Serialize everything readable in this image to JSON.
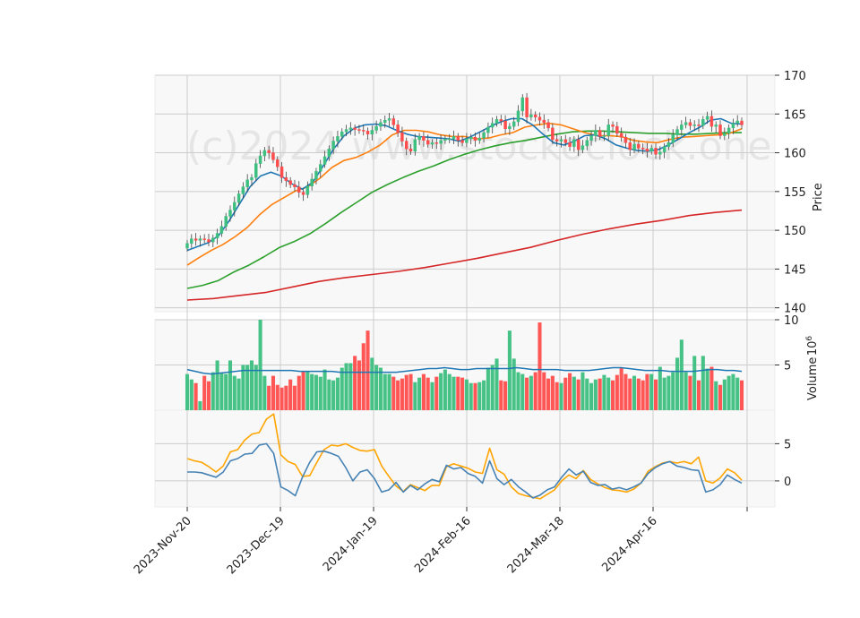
{
  "watermark": "(c)2024 www.stockoclock.one",
  "chart_data": {
    "type": "candlestick",
    "x_tick_labels": [
      "2023-Nov-20",
      "2023-Dec-19",
      "2024-Jan-19",
      "2024-Feb-16",
      "2024-Mar-18",
      "2024-Apr-16"
    ],
    "price_axis": {
      "label": "Price",
      "ylim": [
        139.5,
        170
      ],
      "ticks": [
        140,
        145,
        150,
        155,
        160,
        165,
        170
      ]
    },
    "volume_axis": {
      "label": "Volume",
      "exponent_label": "10^6",
      "ylim": [
        0,
        10
      ],
      "ticks": [
        5,
        10
      ]
    },
    "indicator_axis": {
      "ylim": [
        -3.5,
        9.5
      ],
      "ticks": [
        0,
        5
      ]
    },
    "colors": {
      "up": "#3dbf80",
      "down": "#ff4d4d",
      "ma_short": "#1f77b4",
      "ma_mid": "#ff7f0e",
      "ma_long": "#2ca02c",
      "ma_200": "#d62728",
      "volume_ma": "#1f77b4",
      "macd": "#4682b4",
      "signal": "#ffa500",
      "panel_bg": "#f8f8f8",
      "grid": "#cccccc"
    },
    "candle_closes": [
      148.3,
      148.9,
      148.7,
      148.9,
      148.8,
      148.5,
      149.0,
      149.6,
      150.5,
      151.8,
      152.6,
      153.6,
      154.7,
      155.6,
      156.5,
      156.8,
      158.6,
      159.6,
      160.3,
      160.0,
      159.1,
      158.2,
      156.8,
      156.4,
      155.9,
      155.6,
      154.9,
      154.6,
      155.7,
      156.6,
      157.6,
      158.5,
      159.5,
      160.5,
      161.5,
      162.1,
      162.7,
      163.0,
      163.2,
      163.0,
      162.9,
      162.8,
      162.4,
      162.9,
      163.4,
      163.9,
      164.2,
      164.4,
      163.6,
      162.6,
      161.5,
      160.5,
      160.2,
      161.7,
      162.1,
      161.6,
      161.1,
      161.3,
      161.2,
      161.6,
      161.8,
      161.8,
      162.1,
      161.6,
      161.3,
      161.8,
      162.0,
      161.6,
      161.9,
      162.6,
      163.3,
      163.8,
      164.3,
      164.1,
      163.1,
      163.4,
      164.0,
      165.4,
      167.1,
      164.6,
      164.9,
      164.6,
      164.2,
      163.9,
      163.2,
      161.7,
      161.5,
      161.7,
      161.3,
      160.8,
      161.7,
      160.4,
      160.9,
      161.6,
      162.2,
      162.9,
      162.1,
      162.2,
      163.6,
      163.4,
      162.5,
      162.0,
      161.3,
      160.4,
      161.1,
      160.6,
      160.5,
      160.2,
      160.6,
      159.8,
      160.1,
      160.8,
      161.3,
      162.3,
      163.0,
      163.6,
      163.9,
      163.5,
      163.6,
      163.5,
      164.3,
      164.7,
      163.4,
      163.6,
      162.2,
      162.5,
      163.2,
      163.8,
      164.1,
      163.6
    ],
    "volume_millions": [
      4.0,
      3.4,
      3.0,
      1.0,
      3.8,
      3.2,
      4.2,
      5.5,
      4.1,
      4.0,
      5.5,
      3.8,
      3.5,
      5.0,
      5.0,
      5.5,
      5.0,
      10.0,
      3.8,
      2.7,
      3.8,
      2.8,
      2.5,
      2.7,
      3.4,
      2.7,
      3.8,
      4.3,
      4.3,
      4.0,
      3.9,
      3.7,
      4.5,
      3.4,
      3.3,
      3.6,
      4.7,
      5.2,
      5.2,
      6.0,
      5.5,
      7.4,
      8.8,
      5.8,
      5.0,
      4.7,
      4.0,
      4.0,
      3.7,
      3.3,
      3.5,
      3.9,
      4.0,
      3.1,
      3.6,
      4.0,
      3.6,
      3.1,
      3.7,
      4.1,
      4.5,
      4.0,
      3.7,
      3.7,
      3.6,
      3.4,
      3.0,
      3.0,
      3.1,
      3.3,
      4.7,
      5.0,
      5.7,
      3.3,
      3.2,
      8.8,
      5.7,
      4.2,
      4.0,
      3.6,
      3.8,
      4.2,
      9.7,
      4.2,
      3.5,
      3.8,
      3.1,
      3.0,
      3.6,
      4.1,
      3.7,
      3.4,
      4.2,
      3.5,
      3.0,
      3.4,
      3.5,
      3.9,
      3.6,
      3.3,
      3.9,
      4.7,
      4.0,
      3.5,
      3.8,
      3.5,
      3.3,
      4.0,
      4.0,
      3.4,
      4.8,
      3.6,
      3.8,
      4.2,
      5.8,
      7.8,
      4.2,
      3.8,
      6.0,
      3.3,
      6.0,
      4.6,
      4.8,
      3.2,
      2.8,
      3.4,
      3.8,
      4.0,
      3.6,
      3.3
    ],
    "volume_ma_millions": [
      4.5,
      4.3,
      4.1,
      4.0,
      4.1,
      4.2,
      4.3,
      4.4,
      4.4,
      4.4,
      4.4,
      4.4,
      4.4,
      4.4,
      4.3,
      4.3,
      4.3,
      4.3,
      4.3,
      4.2,
      4.2,
      4.2,
      4.2,
      4.2,
      4.2,
      4.2,
      4.2,
      4.3,
      4.4,
      4.5,
      4.6,
      4.6,
      4.7,
      4.6,
      4.5,
      4.5,
      4.6,
      4.6,
      4.6,
      4.6,
      4.6,
      4.7,
      4.6,
      4.5,
      4.5,
      4.5,
      4.5,
      4.4,
      4.4,
      4.4,
      4.4,
      4.5,
      4.6,
      4.7,
      4.7,
      4.6,
      4.5,
      4.4,
      4.4,
      4.4,
      4.3,
      4.3,
      4.3,
      4.3,
      4.4,
      4.5,
      4.5,
      4.4,
      4.4,
      4.3
    ],
    "macd": [
      1.2,
      1.2,
      1.1,
      0.8,
      0.5,
      1.2,
      2.7,
      3.0,
      3.6,
      3.7,
      4.8,
      5.0,
      3.7,
      -0.8,
      -1.3,
      -2.0,
      0.5,
      2.5,
      3.9,
      4.0,
      3.7,
      3.3,
      1.8,
      0.0,
      1.2,
      1.5,
      0.3,
      -1.5,
      -1.2,
      -0.2,
      -1.5,
      -0.6,
      -1.2,
      -0.4,
      0.2,
      -0.1,
      2.1,
      1.6,
      1.8,
      1.0,
      0.6,
      -0.3,
      2.7,
      0.3,
      -0.5,
      0.2,
      -0.8,
      -1.5,
      -2.3,
      -1.9,
      -1.2,
      -0.8,
      0.5,
      1.6,
      0.8,
      1.3,
      -0.2,
      -0.6,
      -0.5,
      -1.1,
      -0.9,
      -1.2,
      -0.8,
      -0.3,
      1.0,
      1.8,
      2.3,
      2.6,
      2.0,
      1.8,
      1.5,
      1.4,
      -1.5,
      -1.2,
      -0.5,
      0.8,
      0.2,
      -0.3
    ],
    "signal": [
      3.0,
      2.7,
      2.5,
      1.9,
      1.2,
      2.0,
      3.9,
      4.2,
      5.5,
      6.3,
      6.5,
      8.3,
      9.0,
      3.5,
      2.6,
      2.2,
      0.6,
      0.7,
      2.5,
      4.2,
      4.8,
      4.7,
      5.0,
      4.5,
      4.1,
      4.0,
      4.2,
      2.0,
      0.6,
      -0.7,
      -1.4,
      -0.5,
      -0.9,
      -1.3,
      -0.6,
      -0.6,
      1.9,
      2.3,
      2.0,
      1.7,
      1.2,
      1.0,
      4.4,
      1.5,
      0.9,
      -0.8,
      -1.7,
      -2.0,
      -2.2,
      -2.4,
      -1.8,
      -1.2,
      0.0,
      0.8,
      0.3,
      1.4,
      0.2,
      -0.4,
      -0.9,
      -1.2,
      -1.3,
      -1.5,
      -1.1,
      -0.3,
      1.3,
      1.9,
      2.4,
      2.6,
      2.4,
      2.6,
      2.3,
      3.2,
      0.0,
      -0.3,
      0.4,
      1.6,
      1.1,
      0.1
    ],
    "ma_short": [
      147.4,
      147.9,
      148.4,
      149.3,
      151.2,
      153.4,
      155.6,
      157.0,
      157.5,
      157.0,
      156.0,
      155.3,
      156.2,
      158.3,
      160.5,
      162.2,
      163.2,
      163.6,
      163.7,
      163.5,
      162.9,
      162.4,
      162.1,
      162.0,
      161.9,
      161.8,
      161.5,
      162.0,
      162.7,
      163.4,
      164.0,
      164.4,
      164.4,
      163.6,
      162.4,
      161.3,
      161.0,
      161.5,
      162.2,
      162.3,
      161.8,
      161.0,
      160.6,
      160.3,
      160.2,
      160.4,
      161.0,
      161.8,
      162.6,
      163.3,
      164.2,
      164.4,
      163.8,
      163.7
    ],
    "ma_mid": [
      145.5,
      146.5,
      147.4,
      148.2,
      149.2,
      150.4,
      152.0,
      153.3,
      154.2,
      155.1,
      155.6,
      156.7,
      158.1,
      159.0,
      159.4,
      160.1,
      161.0,
      162.3,
      162.9,
      162.9,
      162.7,
      162.3,
      162.1,
      162.1,
      161.8,
      161.9,
      162.3,
      162.6,
      163.3,
      163.6,
      163.8,
      163.6,
      163.1,
      162.6,
      162.2,
      162.2,
      162.1,
      161.6,
      161.4,
      161.3,
      161.7,
      162.0,
      162.1,
      162.2,
      162.3,
      162.5,
      163.1
    ],
    "ma_long": [
      142.5,
      142.9,
      143.5,
      144.6,
      145.5,
      146.6,
      147.8,
      148.6,
      149.6,
      150.9,
      152.3,
      153.6,
      154.9,
      155.9,
      156.8,
      157.6,
      158.3,
      159.1,
      159.8,
      160.4,
      160.9,
      161.3,
      161.6,
      162.0,
      162.4,
      162.7,
      162.8,
      162.8,
      162.7,
      162.6,
      162.5,
      162.5,
      162.4,
      162.4,
      162.5,
      162.6,
      162.6
    ],
    "ma_200": [
      141.0,
      141.2,
      141.6,
      142.0,
      142.7,
      143.4,
      143.9,
      144.3,
      144.7,
      145.2,
      145.8,
      146.4,
      147.1,
      147.8,
      148.7,
      149.5,
      150.2,
      150.8,
      151.3,
      151.9,
      152.3,
      152.6
    ]
  }
}
